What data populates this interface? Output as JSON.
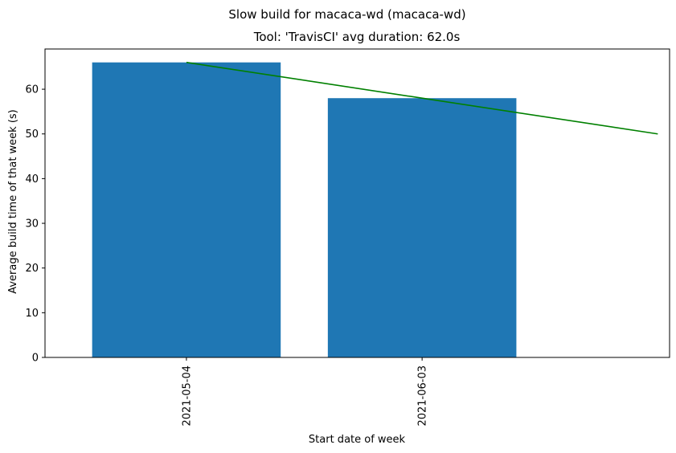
{
  "suptitle": "Slow build for macaca-wd (macaca-wd)",
  "chart_data": {
    "type": "bar",
    "title": "Tool: 'TravisCI' avg duration: 62.0s",
    "xlabel": "Start date of week",
    "ylabel": "Average build time of that week (s)",
    "categories": [
      "2021-05-04",
      "2021-06-03"
    ],
    "values": [
      66,
      58
    ],
    "bar_color": "#1f77b4",
    "trend_line": {
      "color": "#008000",
      "x": [
        0,
        1,
        2
      ],
      "y": [
        66,
        58,
        50
      ]
    },
    "ylim": [
      0,
      69
    ],
    "yticks": [
      0,
      10,
      20,
      30,
      40,
      50,
      60
    ],
    "xtick_labels": [
      "2021-05-04",
      "2021-06-03"
    ],
    "grid": false,
    "legend": "none"
  }
}
